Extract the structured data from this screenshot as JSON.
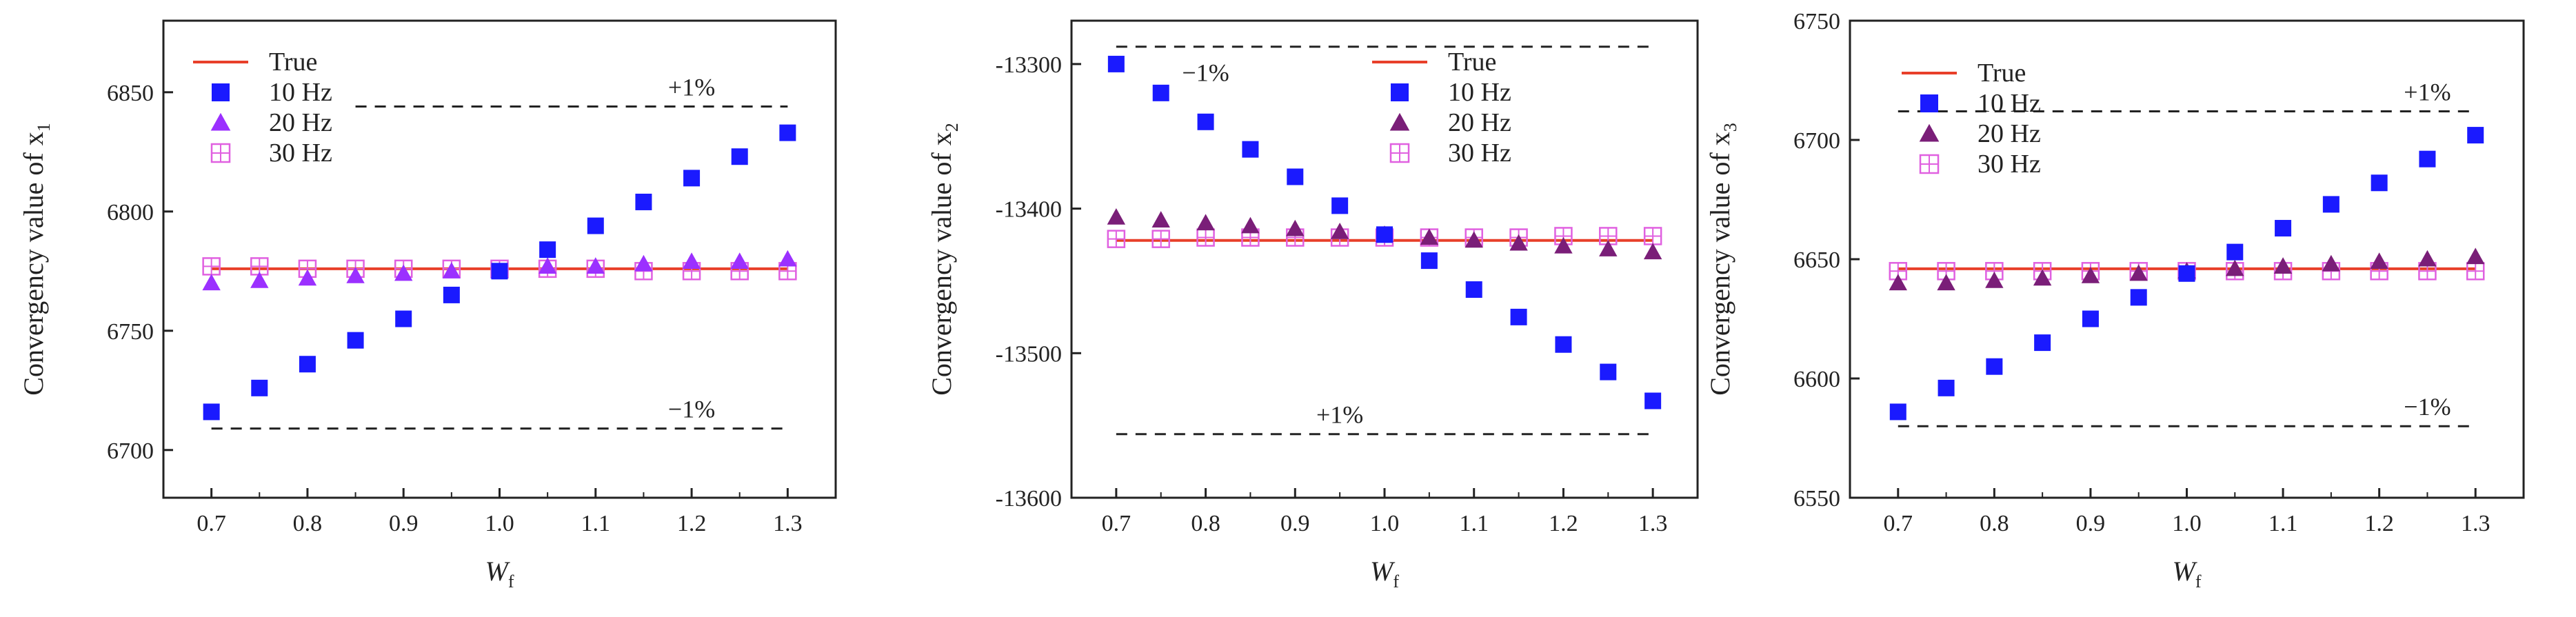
{
  "colors": {
    "true_line": "#e8402a",
    "s10": "#1a1aff",
    "s20_panel1": "#9b30ff",
    "s20_other": "#7a1e78",
    "s30": "#e060e0",
    "axis": "#222222",
    "dashed": "#222222"
  },
  "chart_data": [
    {
      "type": "scatter",
      "xlabel": "W",
      "xlabel_sub": "f",
      "ylabel": "Convergency value of x",
      "ylabel_sub": "1",
      "xlim": [
        0.65,
        1.35
      ],
      "ylim": [
        6680,
        6880
      ],
      "xticks": [
        "0.7",
        "0.8",
        "0.9",
        "1.0",
        "1.1",
        "1.2",
        "1.3"
      ],
      "yticks": [
        "6700",
        "6750",
        "6800",
        "6850"
      ],
      "x": [
        0.7,
        0.75,
        0.8,
        0.85,
        0.9,
        0.95,
        1.0,
        1.05,
        1.1,
        1.15,
        1.2,
        1.25,
        1.3
      ],
      "true_value": 6776,
      "series": [
        {
          "name": "10 Hz",
          "marker": "square",
          "values": [
            6716,
            6726,
            6736,
            6746,
            6755,
            6765,
            6775,
            6784,
            6794,
            6804,
            6814,
            6823,
            6833
          ]
        },
        {
          "name": "20 Hz",
          "marker": "triangle",
          "values": [
            6770,
            6771,
            6772,
            6773,
            6774,
            6775,
            6775,
            6777,
            6777,
            6778,
            6779,
            6779,
            6780
          ]
        },
        {
          "name": "30 Hz",
          "marker": "crossed-square",
          "values": [
            6777,
            6777,
            6776,
            6776,
            6776,
            6776,
            6776,
            6776,
            6776,
            6775,
            6775,
            6775,
            6775
          ]
        }
      ],
      "legend": [
        "True",
        "10 Hz",
        "20 Hz",
        "30 Hz"
      ],
      "bands": [
        {
          "label": "+1%",
          "value": 6844,
          "x_from": 0.85,
          "x_to": 1.3,
          "label_x": 1.2,
          "label_pos": "above"
        },
        {
          "label": "−1%",
          "value": 6709,
          "x_from": 0.7,
          "x_to": 1.3,
          "label_x": 1.2,
          "label_pos": "above"
        }
      ]
    },
    {
      "type": "scatter",
      "xlabel": "W",
      "xlabel_sub": "f",
      "ylabel": "Convergency value of x",
      "ylabel_sub": "2",
      "xlim": [
        0.65,
        1.35
      ],
      "ylim": [
        -13600,
        -13270
      ],
      "xticks": [
        "0.7",
        "0.8",
        "0.9",
        "1.0",
        "1.1",
        "1.2",
        "1.3"
      ],
      "yticks": [
        "-13300",
        "-13400",
        "-13500",
        "-13600"
      ],
      "x": [
        0.7,
        0.75,
        0.8,
        0.85,
        0.9,
        0.95,
        1.0,
        1.05,
        1.1,
        1.15,
        1.2,
        1.25,
        1.3
      ],
      "true_value": -13422,
      "series": [
        {
          "name": "10 Hz",
          "marker": "square",
          "values": [
            -13300,
            -13320,
            -13340,
            -13359,
            -13378,
            -13398,
            -13418,
            -13436,
            -13456,
            -13475,
            -13494,
            -13513,
            -13533
          ]
        },
        {
          "name": "20 Hz",
          "marker": "triangle",
          "values": [
            -13406,
            -13408,
            -13410,
            -13412,
            -13414,
            -13416,
            -13418,
            -13420,
            -13422,
            -13424,
            -13426,
            -13428,
            -13430
          ]
        },
        {
          "name": "30 Hz",
          "marker": "crossed-square",
          "values": [
            -13421,
            -13421,
            -13420,
            -13420,
            -13420,
            -13420,
            -13420,
            -13420,
            -13420,
            -13420,
            -13419,
            -13419,
            -13419
          ]
        }
      ],
      "legend": [
        "True",
        "10 Hz",
        "20 Hz",
        "30 Hz"
      ],
      "bands": [
        {
          "label": "−1%",
          "value": -13288,
          "x_from": 0.7,
          "x_to": 1.3,
          "label_x": 0.8,
          "label_pos": "below"
        },
        {
          "label": "+1%",
          "value": -13556,
          "x_from": 0.7,
          "x_to": 1.3,
          "label_x": 0.95,
          "label_pos": "above"
        }
      ]
    },
    {
      "type": "scatter",
      "xlabel": "W",
      "xlabel_sub": "f",
      "ylabel": "Convergency value of x",
      "ylabel_sub": "3",
      "xlim": [
        0.65,
        1.35
      ],
      "ylim": [
        6550,
        6750
      ],
      "xticks": [
        "0.7",
        "0.8",
        "0.9",
        "1.0",
        "1.1",
        "1.2",
        "1.3"
      ],
      "yticks": [
        "6550",
        "6600",
        "6650",
        "6700",
        "6750"
      ],
      "x": [
        0.7,
        0.75,
        0.8,
        0.85,
        0.9,
        0.95,
        1.0,
        1.05,
        1.1,
        1.15,
        1.2,
        1.25,
        1.3
      ],
      "true_value": 6646,
      "series": [
        {
          "name": "10 Hz",
          "marker": "square",
          "values": [
            6586,
            6596,
            6605,
            6615,
            6625,
            6634,
            6644,
            6653,
            6663,
            6673,
            6682,
            6692,
            6702
          ]
        },
        {
          "name": "20 Hz",
          "marker": "triangle",
          "values": [
            6640,
            6640,
            6641,
            6642,
            6643,
            6644,
            6645,
            6646,
            6647,
            6648,
            6649,
            6650,
            6651
          ]
        },
        {
          "name": "30 Hz",
          "marker": "crossed-square",
          "values": [
            6645,
            6645,
            6645,
            6645,
            6645,
            6645,
            6645,
            6645,
            6645,
            6645,
            6645,
            6645,
            6645
          ]
        }
      ],
      "legend": [
        "True",
        "10 Hz",
        "20 Hz",
        "30 Hz"
      ],
      "bands": [
        {
          "label": "+1%",
          "value": 6712,
          "x_from": 0.7,
          "x_to": 1.3,
          "label_x": 1.25,
          "label_pos": "above"
        },
        {
          "label": "−1%",
          "value": 6580,
          "x_from": 0.7,
          "x_to": 1.3,
          "label_x": 1.25,
          "label_pos": "above"
        }
      ]
    }
  ]
}
